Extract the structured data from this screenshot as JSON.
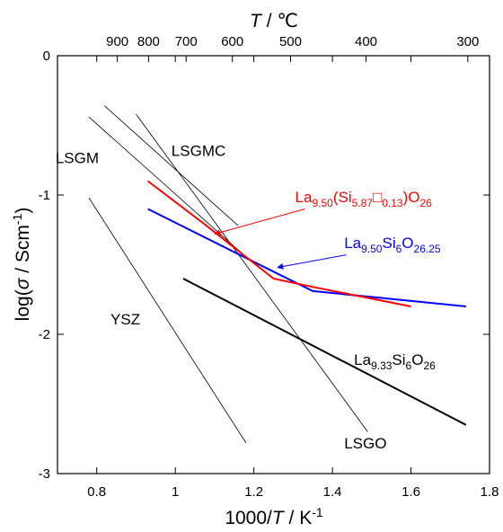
{
  "chart_data": {
    "type": "line",
    "xlabel": {
      "prefix": "1000/",
      "var": "T",
      "mid": " / K",
      "sup": "-1"
    },
    "ylabel": {
      "prefix": "log(",
      "var": "σ",
      "mid": " / Scm",
      "sup": "-1",
      "suffix": ")"
    },
    "top_axis_label": {
      "var": "T",
      "mid": " / ℃"
    },
    "xlim": [
      0.7,
      1.8
    ],
    "ylim": [
      -3,
      0
    ],
    "x_ticks": [
      0.8,
      1.0,
      1.2,
      1.4,
      1.6,
      1.8
    ],
    "x_tick_labels": [
      "0.8",
      "1",
      "1.2",
      "1.4",
      "1.6",
      "1.8"
    ],
    "y_ticks": [
      0,
      -1,
      -2,
      -3
    ],
    "y_tick_labels": [
      "0",
      "-1",
      "-2",
      "-3"
    ],
    "top_ticks": [
      900,
      800,
      700,
      600,
      500,
      400,
      300
    ],
    "top_tick_labels": [
      "900",
      "800",
      "700",
      "600",
      "500",
      "400",
      "300"
    ],
    "series": [
      {
        "name": "YSZ",
        "color": "#000000",
        "width": 0.8,
        "x": [
          0.78,
          1.18
        ],
        "y": [
          -1.02,
          -2.78
        ],
        "label_parts": [
          {
            "t": "YSZ"
          }
        ],
        "label_at": [
          0.835,
          -1.93
        ]
      },
      {
        "name": "LSGM",
        "color": "#000000",
        "width": 0.8,
        "x": [
          0.78,
          1.17
        ],
        "y": [
          -0.44,
          -1.42
        ],
        "label_parts": [
          {
            "t": "LSGM"
          }
        ],
        "label_at": [
          0.695,
          -0.77
        ]
      },
      {
        "name": "LSGMC",
        "color": "#000000",
        "width": 0.8,
        "x": [
          0.82,
          1.16
        ],
        "y": [
          -0.36,
          -1.22
        ],
        "label_parts": [
          {
            "t": "LSGMC"
          }
        ],
        "label_at": [
          0.99,
          -0.72
        ]
      },
      {
        "name": "LSGO",
        "color": "#000000",
        "width": 0.8,
        "x": [
          0.9,
          1.49
        ],
        "y": [
          -0.42,
          -2.7
        ],
        "label_parts": [
          {
            "t": "LSGO"
          }
        ],
        "label_at": [
          1.43,
          -2.82
        ]
      },
      {
        "name": "La9.33Si6O26",
        "color": "#000000",
        "width": 2,
        "x": [
          1.02,
          1.74
        ],
        "y": [
          -1.6,
          -2.65
        ],
        "label_parts": [
          {
            "t": "La"
          },
          {
            "t": "9.33",
            "sub": true
          },
          {
            "t": "Si"
          },
          {
            "t": "6",
            "sub": true
          },
          {
            "t": "O"
          },
          {
            "t": "26",
            "sub": true
          }
        ],
        "label_at": [
          1.455,
          -2.22
        ]
      },
      {
        "name": "La9.50Si6O26.25",
        "color": "#0000ff",
        "width": 2,
        "x": [
          0.93,
          1.25,
          1.35,
          1.74
        ],
        "y": [
          -1.1,
          -1.55,
          -1.69,
          -1.8
        ],
        "label_parts": [
          {
            "t": "La"
          },
          {
            "t": "9.50",
            "sub": true
          },
          {
            "t": "Si"
          },
          {
            "t": "6",
            "sub": true
          },
          {
            "t": "O"
          },
          {
            "t": "26.25",
            "sub": true
          }
        ],
        "label_at": [
          1.43,
          -1.38
        ],
        "arrow_from": [
          1.435,
          -1.43
        ],
        "arrow_to": [
          1.26,
          -1.52
        ]
      },
      {
        "name": "La9.50(Si5.87□0.13)O26",
        "color": "#ff0000",
        "width": 2,
        "x": [
          0.93,
          1.07,
          1.25,
          1.35,
          1.6
        ],
        "y": [
          -0.9,
          -1.2,
          -1.6,
          -1.66,
          -1.8
        ],
        "label_parts": [
          {
            "t": "La"
          },
          {
            "t": "9.50",
            "sub": true
          },
          {
            "t": "(Si"
          },
          {
            "t": "5.87",
            "sub": true
          },
          {
            "t": "□"
          },
          {
            "t": "0.13",
            "sub": true
          },
          {
            "t": ")O"
          },
          {
            "t": "26",
            "sub": true
          }
        ],
        "label_at": [
          1.305,
          -1.05
        ],
        "arrow_from": [
          1.33,
          -1.1
        ],
        "arrow_to": [
          1.1,
          -1.28
        ]
      }
    ]
  }
}
